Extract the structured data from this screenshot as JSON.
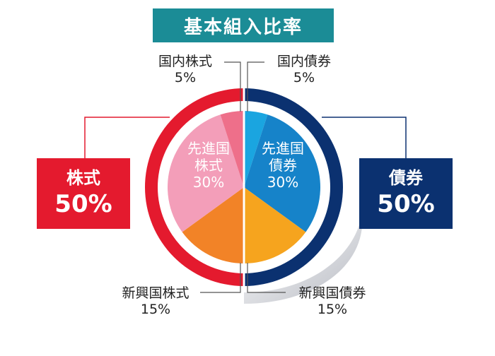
{
  "title": "基本組入比率",
  "chart_data": {
    "type": "pie",
    "title": "基本組入比率",
    "slices": [
      {
        "label": "国内債券",
        "value": 5,
        "color": "#1aa5e0"
      },
      {
        "label": "先進国債券",
        "value": 30,
        "color": "#1683c9"
      },
      {
        "label": "新興国債券",
        "value": 15,
        "color": "#f6a41e"
      },
      {
        "label": "新興国株式",
        "value": 15,
        "color": "#f28327"
      },
      {
        "label": "先進国株式",
        "value": 30,
        "color": "#f39eb9"
      },
      {
        "label": "国内株式",
        "value": 5,
        "color": "#ee6f8a"
      }
    ],
    "groups": [
      {
        "label": "株式",
        "value": 50,
        "color": "#e41a2e"
      },
      {
        "label": "債券",
        "value": 50,
        "color": "#0b3170"
      }
    ]
  },
  "labels": {
    "domestic_stock": {
      "name": "国内株式",
      "pct": "5%"
    },
    "domestic_bond": {
      "name": "国内債券",
      "pct": "5%"
    },
    "developed_stock": {
      "name1": "先進国",
      "name2": "株式",
      "pct": "30%"
    },
    "developed_bond": {
      "name1": "先進国",
      "name2": "債券",
      "pct": "30%"
    },
    "emerging_stock": {
      "name": "新興国株式",
      "pct": "15%"
    },
    "emerging_bond": {
      "name": "新興国債券",
      "pct": "15%"
    },
    "stock_total": {
      "name": "株式",
      "pct": "50%"
    },
    "bond_total": {
      "name": "債券",
      "pct": "50%"
    }
  }
}
